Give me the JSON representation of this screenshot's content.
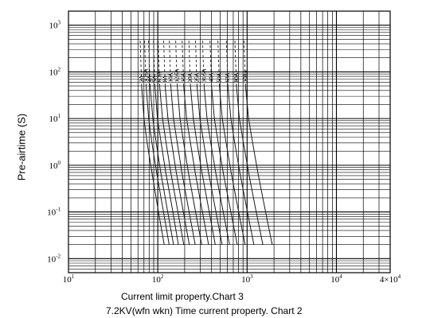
{
  "chart_data": {
    "type": "line",
    "x_scale": "log",
    "y_scale": "log",
    "xlim": [
      10,
      40000
    ],
    "ylim": [
      0.005,
      2000
    ],
    "x_ticks": [
      {
        "value": 10,
        "base": "10",
        "exp": "1"
      },
      {
        "value": 100,
        "base": "10",
        "exp": "2"
      },
      {
        "value": 1000,
        "base": "10",
        "exp": "3"
      },
      {
        "value": 10000,
        "base": "10",
        "exp": "4"
      },
      {
        "value": 40000,
        "base": "4×10",
        "exp": "4"
      }
    ],
    "y_ticks": [
      {
        "value": 1000,
        "base": "10",
        "exp": "3"
      },
      {
        "value": 100,
        "base": "10",
        "exp": "2"
      },
      {
        "value": 10,
        "base": "10",
        "exp": "1"
      },
      {
        "value": 1,
        "base": "10",
        "exp": "0"
      },
      {
        "value": 0.1,
        "base": "10",
        "exp": "-1"
      },
      {
        "value": 0.01,
        "base": "10",
        "exp": "-2"
      }
    ],
    "ylabel": "Pre-airtime (S)",
    "grid": true,
    "series": [
      {
        "name": "2A",
        "x": [
          66,
          70,
          76,
          86,
          100,
          118
        ],
        "y": [
          50,
          10,
          3,
          0.7,
          0.12,
          0.02
        ]
      },
      {
        "name": "3.15A",
        "x": [
          74,
          79,
          86,
          97,
          114,
          134
        ],
        "y": [
          50,
          10,
          3,
          0.7,
          0.12,
          0.02
        ]
      },
      {
        "name": "4A",
        "x": [
          82,
          88,
          96,
          108,
          127,
          150
        ],
        "y": [
          50,
          10,
          3,
          0.7,
          0.12,
          0.02
        ]
      },
      {
        "name": "5A",
        "x": [
          93,
          99,
          109,
          123,
          145,
          170
        ],
        "y": [
          50,
          10,
          3,
          0.7,
          0.12,
          0.02
        ]
      },
      {
        "name": "6.3A",
        "x": [
          105,
          113,
          124,
          140,
          165,
          195
        ],
        "y": [
          50,
          10,
          3,
          0.7,
          0.12,
          0.02
        ]
      },
      {
        "name": "8A",
        "x": [
          121,
          130,
          143,
          161,
          190,
          225
        ],
        "y": [
          50,
          10,
          3,
          0.7,
          0.12,
          0.02
        ]
      },
      {
        "name": "10A",
        "x": [
          140,
          150,
          165,
          186,
          220,
          262
        ],
        "y": [
          50,
          10,
          3,
          0.7,
          0.12,
          0.02
        ]
      },
      {
        "name": "12.5A",
        "x": [
          165,
          177,
          195,
          220,
          260,
          310
        ],
        "y": [
          50,
          10,
          3,
          0.7,
          0.12,
          0.02
        ]
      },
      {
        "name": "16A",
        "x": [
          195,
          210,
          232,
          262,
          310,
          370
        ],
        "y": [
          50,
          10,
          3,
          0.7,
          0.12,
          0.02
        ]
      },
      {
        "name": "20A",
        "x": [
          232,
          250,
          275,
          312,
          370,
          440
        ],
        "y": [
          50,
          10,
          3,
          0.7,
          0.12,
          0.02
        ]
      },
      {
        "name": "25A",
        "x": [
          275,
          296,
          327,
          370,
          440,
          525
        ],
        "y": [
          50,
          10,
          3,
          0.7,
          0.12,
          0.02
        ]
      },
      {
        "name": "31.5A",
        "x": [
          330,
          356,
          392,
          445,
          530,
          635
        ],
        "y": [
          50,
          10,
          3,
          0.7,
          0.12,
          0.02
        ]
      },
      {
        "name": "40A",
        "x": [
          400,
          430,
          475,
          540,
          645,
          775
        ],
        "y": [
          50,
          10,
          3,
          0.7,
          0.12,
          0.02
        ]
      },
      {
        "name": "50A",
        "x": [
          490,
          527,
          582,
          663,
          790,
          950
        ],
        "y": [
          50,
          10,
          3,
          0.7,
          0.12,
          0.02
        ]
      },
      {
        "name": "63A",
        "x": [
          610,
          657,
          727,
          830,
          990,
          1190
        ],
        "y": [
          50,
          10,
          3,
          0.7,
          0.12,
          0.02
        ]
      },
      {
        "name": "80A",
        "x": [
          760,
          820,
          910,
          1040,
          1240,
          1500
        ],
        "y": [
          50,
          10,
          3,
          0.7,
          0.12,
          0.02
        ]
      },
      {
        "name": "100A",
        "x": [
          960,
          1040,
          1155,
          1320,
          1580,
          1910
        ],
        "y": [
          50,
          10,
          3,
          0.7,
          0.12,
          0.02
        ]
      }
    ],
    "captions": [
      "Current limit property.Chart 3",
      "7.2KV(wfn wkn) Time current property. Chart 2"
    ],
    "colors": {
      "grid": "#000000",
      "curve": "#1a1a1a",
      "background": "#ffffff"
    }
  }
}
